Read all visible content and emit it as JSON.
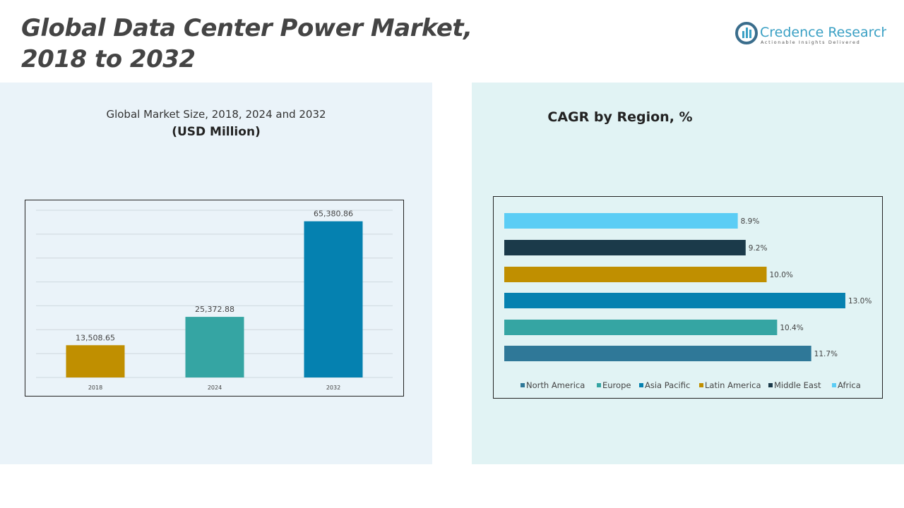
{
  "title_lines": [
    "Global Data Center Power Market,",
    "2018 to 2032"
  ],
  "logo": {
    "name": "Credence Research",
    "tagline": "Actionable Insights Delivered"
  },
  "chart_data": [
    {
      "type": "bar",
      "title": "Global Market Size, 2018, 2024 and 2032",
      "subtitle": "(USD Million)",
      "categories": [
        "2018",
        "2024",
        "2032"
      ],
      "values": [
        13508.65,
        25372.88,
        65380.86
      ],
      "labels": [
        "13,508.65",
        "25,372.88",
        "65,380.86"
      ],
      "colors": [
        "#c08f00",
        "#35a5a3",
        "#0581b0"
      ],
      "ylim": [
        0,
        70000
      ],
      "grid": true
    },
    {
      "type": "bar",
      "orientation": "horizontal",
      "title": "CAGR by Region, %",
      "categories": [
        "North America",
        "Europe",
        "Asia Pacific",
        "Latin America",
        "Middle East",
        "Africa"
      ],
      "values": [
        11.7,
        10.4,
        13.0,
        10.0,
        9.2,
        8.9
      ],
      "labels": [
        "11.7%",
        "10.4%",
        "13.0%",
        "10.0%",
        "9.2%",
        "8.9%"
      ],
      "colors": [
        "#2f7898",
        "#35a5a3",
        "#0581b0",
        "#c08f00",
        "#1b3a4a",
        "#5bcdf5"
      ],
      "legend": "bottom",
      "xlim": [
        0,
        13
      ]
    }
  ]
}
